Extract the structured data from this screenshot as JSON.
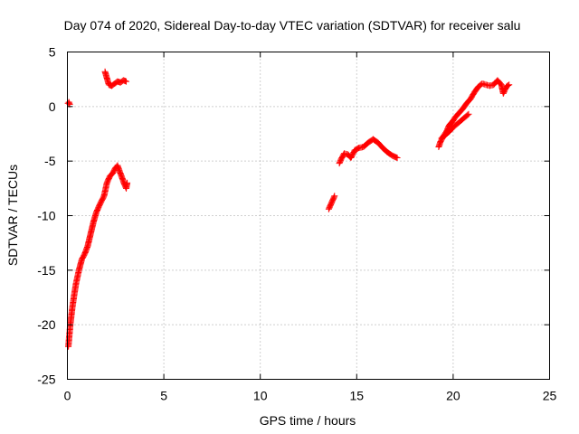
{
  "chart_data": {
    "type": "scatter",
    "title": "Day 074 of 2020, Sidereal Day-to-day VTEC variation (SDTVAR) for receiver salu",
    "xlabel": "GPS time / hours",
    "ylabel": "SDTVAR / TECUs",
    "xlim": [
      0,
      25
    ],
    "ylim": [
      -25,
      5
    ],
    "xticks": [
      0,
      5,
      10,
      15,
      20,
      25
    ],
    "yticks": [
      -25,
      -20,
      -15,
      -10,
      -5,
      0,
      5
    ],
    "xtick_labels": [
      "0",
      "5",
      "10",
      "15",
      "20",
      "25"
    ],
    "ytick_labels": [
      "-25",
      "-20",
      "-15",
      "-10",
      "-5",
      "0",
      "5"
    ],
    "grid": true,
    "marker": "+",
    "color": "#ff0000",
    "series": [
      {
        "name": "SDTVAR",
        "segments": [
          [
            [
              0.03,
              0.3
            ],
            [
              0.08,
              0.4
            ],
            [
              0.12,
              0.2
            ]
          ],
          [
            [
              0.05,
              -22.0
            ],
            [
              0.1,
              -21.0
            ],
            [
              0.15,
              -20.0
            ],
            [
              0.25,
              -18.5
            ],
            [
              0.35,
              -17.3
            ],
            [
              0.45,
              -16.2
            ],
            [
              0.6,
              -15.0
            ],
            [
              0.75,
              -14.0
            ],
            [
              0.9,
              -13.5
            ],
            [
              1.05,
              -12.8
            ],
            [
              1.2,
              -11.7
            ],
            [
              1.35,
              -10.6
            ],
            [
              1.5,
              -9.7
            ],
            [
              1.7,
              -8.9
            ],
            [
              1.9,
              -8.2
            ],
            [
              2.05,
              -7.0
            ],
            [
              2.2,
              -6.4
            ],
            [
              2.35,
              -6.1
            ],
            [
              2.5,
              -5.6
            ],
            [
              2.6,
              -5.4
            ],
            [
              2.7,
              -5.9
            ],
            [
              2.85,
              -6.6
            ],
            [
              2.95,
              -7.1
            ],
            [
              3.05,
              -7.5
            ],
            [
              3.1,
              -7.0
            ]
          ],
          [
            [
              1.95,
              3.2
            ],
            [
              2.05,
              2.6
            ],
            [
              2.15,
              2.0
            ],
            [
              2.3,
              1.9
            ],
            [
              2.45,
              2.1
            ],
            [
              2.6,
              2.3
            ],
            [
              2.75,
              2.2
            ],
            [
              2.9,
              2.4
            ],
            [
              3.05,
              2.3
            ]
          ],
          [
            [
              13.55,
              -9.4
            ],
            [
              13.65,
              -9.0
            ],
            [
              13.75,
              -8.6
            ],
            [
              13.85,
              -8.2
            ]
          ],
          [
            [
              14.1,
              -5.2
            ],
            [
              14.2,
              -4.8
            ],
            [
              14.35,
              -4.3
            ],
            [
              14.55,
              -4.4
            ],
            [
              14.7,
              -4.7
            ],
            [
              14.9,
              -4.0
            ],
            [
              15.1,
              -3.8
            ],
            [
              15.35,
              -3.7
            ],
            [
              15.6,
              -3.3
            ],
            [
              15.85,
              -3.0
            ],
            [
              16.1,
              -3.3
            ],
            [
              16.35,
              -3.8
            ],
            [
              16.6,
              -4.2
            ],
            [
              16.85,
              -4.5
            ],
            [
              17.1,
              -4.7
            ]
          ],
          [
            [
              19.25,
              -3.7
            ],
            [
              19.35,
              -3.2
            ],
            [
              19.5,
              -2.7
            ],
            [
              19.65,
              -2.3
            ],
            [
              19.8,
              -1.7
            ],
            [
              19.95,
              -1.4
            ],
            [
              20.1,
              -1.0
            ],
            [
              20.3,
              -0.6
            ],
            [
              20.5,
              -0.2
            ],
            [
              20.7,
              0.3
            ],
            [
              20.9,
              0.7
            ],
            [
              21.1,
              1.3
            ],
            [
              21.3,
              1.8
            ],
            [
              21.5,
              2.1
            ],
            [
              21.7,
              2.0
            ],
            [
              21.9,
              1.9
            ],
            [
              22.1,
              2.0
            ],
            [
              22.3,
              2.4
            ],
            [
              22.5,
              2.0
            ],
            [
              22.6,
              1.2
            ],
            [
              22.75,
              1.8
            ],
            [
              22.9,
              2.0
            ]
          ],
          [
            [
              19.4,
              -2.9
            ],
            [
              19.6,
              -2.6
            ],
            [
              19.8,
              -2.3
            ],
            [
              20.0,
              -1.9
            ],
            [
              20.2,
              -1.6
            ],
            [
              20.4,
              -1.3
            ],
            [
              20.6,
              -1.0
            ],
            [
              20.8,
              -0.7
            ]
          ]
        ]
      }
    ]
  }
}
